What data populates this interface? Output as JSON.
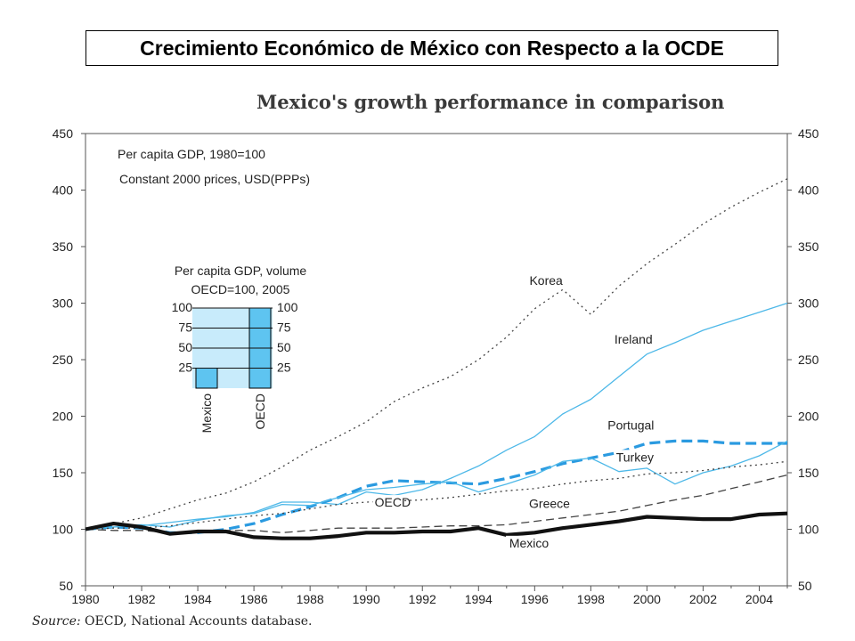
{
  "slide": {
    "title": "Crecimiento Económico de México con Respecto a la OCDE"
  },
  "chart_data": {
    "type": "line",
    "title": "Mexico's growth performance in comparison",
    "annotation": [
      "Per capita GDP, 1980=100",
      "Constant 2000 prices, USD(PPPs)"
    ],
    "source_label": "Source:",
    "source_text": " OECD, National Accounts database.",
    "x": [
      1980,
      1981,
      1982,
      1983,
      1984,
      1985,
      1986,
      1987,
      1988,
      1989,
      1990,
      1991,
      1992,
      1993,
      1994,
      1995,
      1996,
      1997,
      1998,
      1999,
      2000,
      2001,
      2002,
      2003,
      2004,
      2005
    ],
    "xticks": [
      "1980",
      "1982",
      "1984",
      "1986",
      "1988",
      "1990",
      "1992",
      "1994",
      "1996",
      "1998",
      "2000",
      "2002",
      "2004"
    ],
    "yticks": [
      "50",
      "100",
      "150",
      "200",
      "250",
      "300",
      "350",
      "400",
      "450"
    ],
    "ylim": [
      50,
      450
    ],
    "xlim": [
      1980,
      2005
    ],
    "grid": false,
    "series": [
      {
        "name": "Korea",
        "color": "#444444",
        "style": "dotted",
        "values": [
          100,
          105,
          110,
          118,
          126,
          132,
          142,
          155,
          170,
          182,
          195,
          213,
          225,
          235,
          250,
          270,
          295,
          312,
          290,
          315,
          335,
          352,
          370,
          385,
          398,
          410
        ]
      },
      {
        "name": "Ireland",
        "color": "#4db8e8",
        "style": "solid",
        "values": [
          100,
          102,
          103,
          106,
          109,
          111,
          115,
          124,
          124,
          122,
          133,
          130,
          135,
          145,
          156,
          170,
          182,
          202,
          215,
          235,
          255,
          265,
          276,
          284,
          292,
          300
        ]
      },
      {
        "name": "Portugal",
        "color": "#2a9ae0",
        "style": "dashed-bold",
        "values": [
          100,
          102,
          101,
          97,
          97,
          100,
          105,
          113,
          120,
          128,
          138,
          143,
          142,
          141,
          140,
          145,
          151,
          158,
          163,
          168,
          176,
          178,
          178,
          176,
          176,
          176
        ]
      },
      {
        "name": "Turkey",
        "color": "#4db8e8",
        "style": "solid",
        "values": [
          100,
          102,
          104,
          102,
          108,
          112,
          114,
          122,
          121,
          128,
          135,
          137,
          140,
          142,
          133,
          140,
          148,
          160,
          163,
          151,
          154,
          140,
          150,
          156,
          165,
          178
        ]
      },
      {
        "name": "OECD",
        "color": "#444444",
        "style": "dotted",
        "values": [
          100,
          101,
          101,
          103,
          106,
          109,
          112,
          114,
          118,
          122,
          124,
          125,
          126,
          128,
          131,
          134,
          136,
          140,
          143,
          145,
          149,
          150,
          152,
          155,
          157,
          160
        ]
      },
      {
        "name": "Greece",
        "color": "#444444",
        "style": "dashed",
        "values": [
          100,
          99,
          99,
          97,
          97,
          99,
          99,
          97,
          99,
          101,
          101,
          101,
          102,
          103,
          103,
          104,
          107,
          110,
          113,
          116,
          121,
          126,
          130,
          136,
          142,
          148
        ]
      },
      {
        "name": "Mexico",
        "color": "#111111",
        "style": "solid-bold",
        "values": [
          100,
          105,
          102,
          96,
          98,
          98,
          93,
          92,
          92,
          94,
          97,
          97,
          98,
          98,
          101,
          95,
          97,
          101,
          104,
          107,
          111,
          110,
          109,
          109,
          113,
          114
        ]
      }
    ],
    "inset": {
      "title_line1": "Per capita GDP, volume",
      "title_line2": "OECD=100, 2005",
      "ticks": [
        "100",
        "75",
        "50",
        "25"
      ],
      "ticks_right": [
        "100",
        "75",
        "50",
        "25"
      ],
      "categories": [
        "Mexico",
        "OECD"
      ],
      "values": [
        25,
        100
      ],
      "ylim": [
        0,
        100
      ],
      "bar_color": "#5ec4f0",
      "bg_color": "#c8ebfb"
    }
  }
}
